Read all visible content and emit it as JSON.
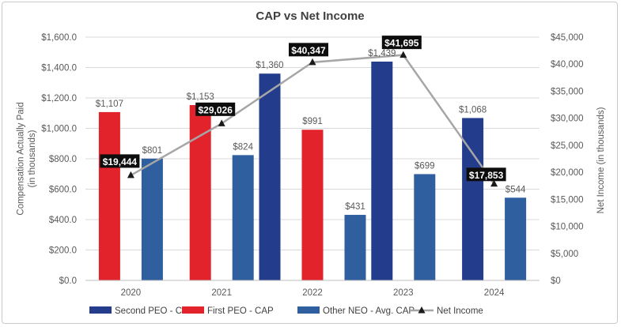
{
  "chart_data": {
    "type": "bar",
    "title": "CAP vs Net Income",
    "categories": [
      "2020",
      "2021",
      "2022",
      "2023",
      "2024"
    ],
    "ylabel_left": "Compensation Actually Paid (in thousands)",
    "ylabel_right": "Net Income (in thousands)",
    "ylim_left": [
      0,
      1600
    ],
    "ylim_right": [
      0,
      45000
    ],
    "left_ticks": [
      "$0.0",
      "$200.0",
      "$400.0",
      "$600.0",
      "$800.0",
      "$1,000.0",
      "$1,200.0",
      "$1,400.0",
      "$1,600.0"
    ],
    "right_ticks": [
      "$0",
      "$5,000",
      "$10,000",
      "$15,000",
      "$20,000",
      "$25,000",
      "$30,000",
      "$35,000",
      "$40,000",
      "$45,000"
    ],
    "series": [
      {
        "name": "Second PEO - CAP",
        "color": "#233d8c",
        "values": [
          null,
          null,
          1360,
          1439,
          1068
        ],
        "labels": [
          "",
          "",
          "$1,360",
          "$1,439",
          "$1,068"
        ]
      },
      {
        "name": "First PEO - CAP",
        "color": "#e3232c",
        "values": [
          1107,
          1153,
          991,
          null,
          null
        ],
        "labels": [
          "$1,107",
          "$1,153",
          "$991",
          "",
          ""
        ]
      },
      {
        "name": "Other NEO - Avg. CAP",
        "color": "#2f5f9e",
        "values": [
          801,
          824,
          431,
          699,
          544
        ],
        "labels": [
          "$801",
          "$824",
          "$431",
          "$699",
          "$544"
        ]
      }
    ],
    "line": {
      "name": "Net Income",
      "color": "#a6a6a6",
      "axis": "right",
      "values": [
        19444,
        29026,
        40347,
        41695,
        17853
      ],
      "labels": [
        "$19,444",
        "$29,026",
        "$40,347",
        "$41,695",
        "$17,853"
      ]
    },
    "legend_position": "bottom",
    "grid": true
  }
}
